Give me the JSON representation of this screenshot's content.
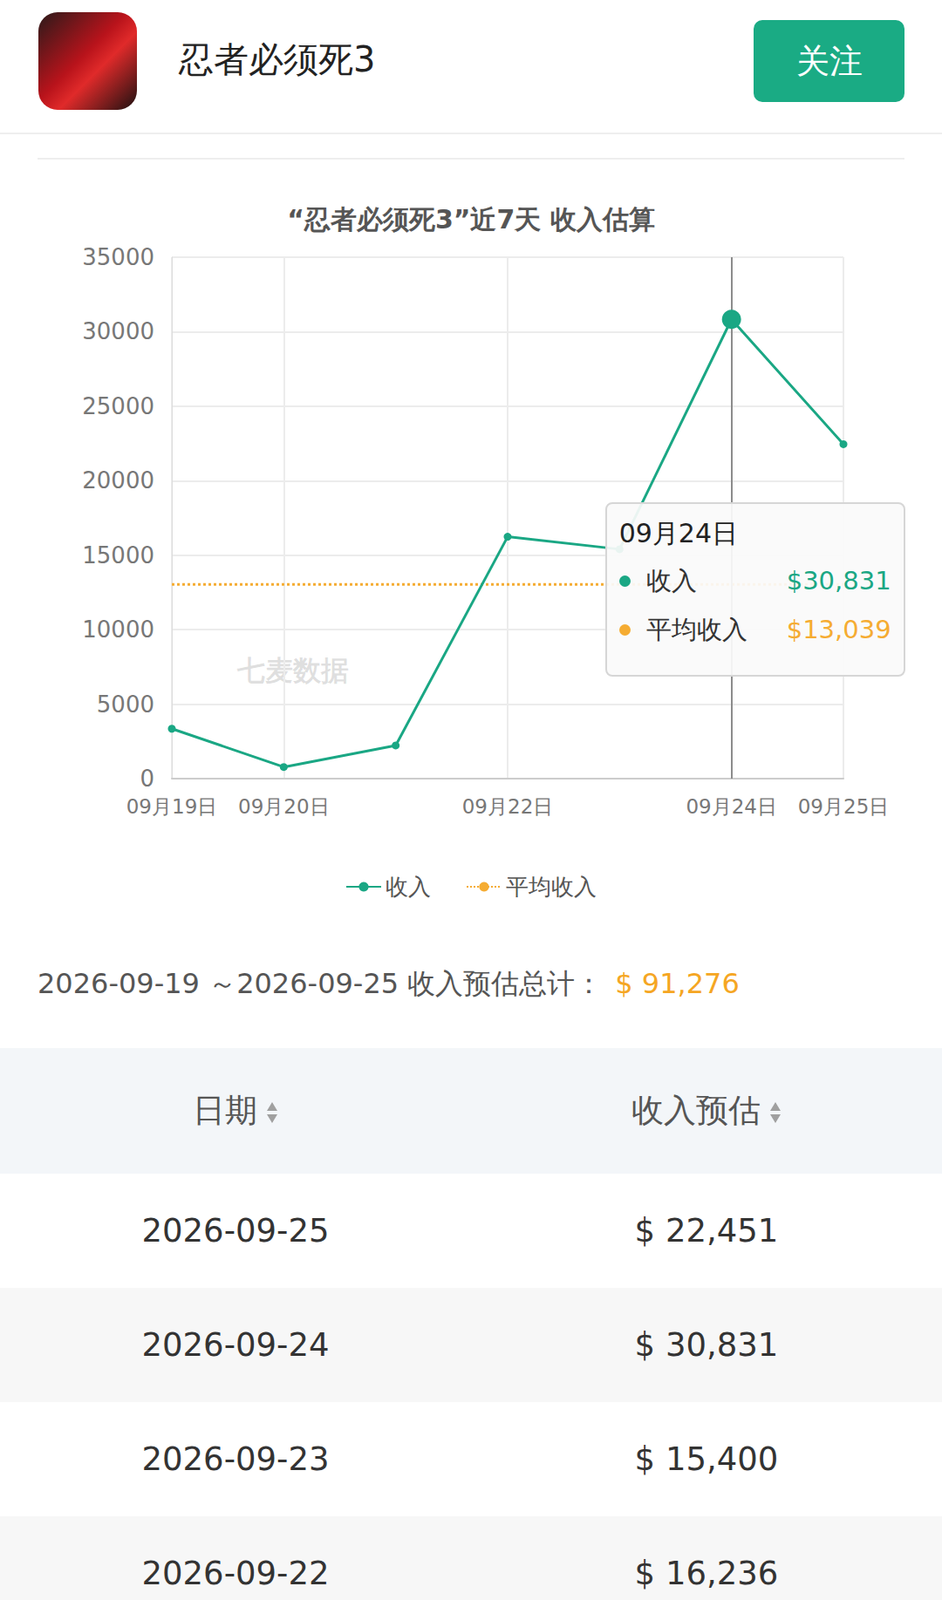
{
  "header": {
    "app_name": "忍者必须死3",
    "button": "关注"
  },
  "chart_data": {
    "type": "line",
    "title": "“忍者必须死3”近7天 收入估算",
    "categories": [
      "09月19日",
      "09月20日",
      null,
      "09月22日",
      null,
      "09月24日",
      "09月25日"
    ],
    "series": [
      {
        "name": "收入",
        "color": "#1aa784",
        "marker": "circle",
        "line_style": "solid",
        "values": [
          3350,
          780,
          2228,
          16236,
          15400,
          30831,
          22451
        ]
      },
      {
        "name": "平均收入",
        "color": "#f5ac32",
        "marker": "circle",
        "line_style": "dotted",
        "values": [
          13039,
          13039,
          13039,
          13039,
          13039,
          13039,
          13039
        ]
      }
    ],
    "ylim": [
      0,
      35000
    ],
    "yticks": [
      0,
      5000,
      10000,
      15000,
      20000,
      25000,
      30000,
      35000
    ],
    "grid": true,
    "legend": "bottom",
    "watermark": "七麦数据",
    "tooltip": {
      "category": "09月24日",
      "items": [
        {
          "name": "收入",
          "value": 30831,
          "label": "$30,831"
        },
        {
          "name": "平均收入",
          "value": 13039,
          "label": "$13,039"
        }
      ]
    }
  },
  "summary": {
    "label": "2026-09-19 ～2026-09-25 收入预估总计：",
    "value": "$ 91,276"
  },
  "table": {
    "columns": [
      "日期",
      "收入预估"
    ],
    "rows": [
      [
        "2026-09-25",
        "$ 22,451"
      ],
      [
        "2026-09-24",
        "$ 30,831"
      ],
      [
        "2026-09-23",
        "$ 15,400"
      ],
      [
        "2026-09-22",
        "$ 16,236"
      ]
    ]
  }
}
